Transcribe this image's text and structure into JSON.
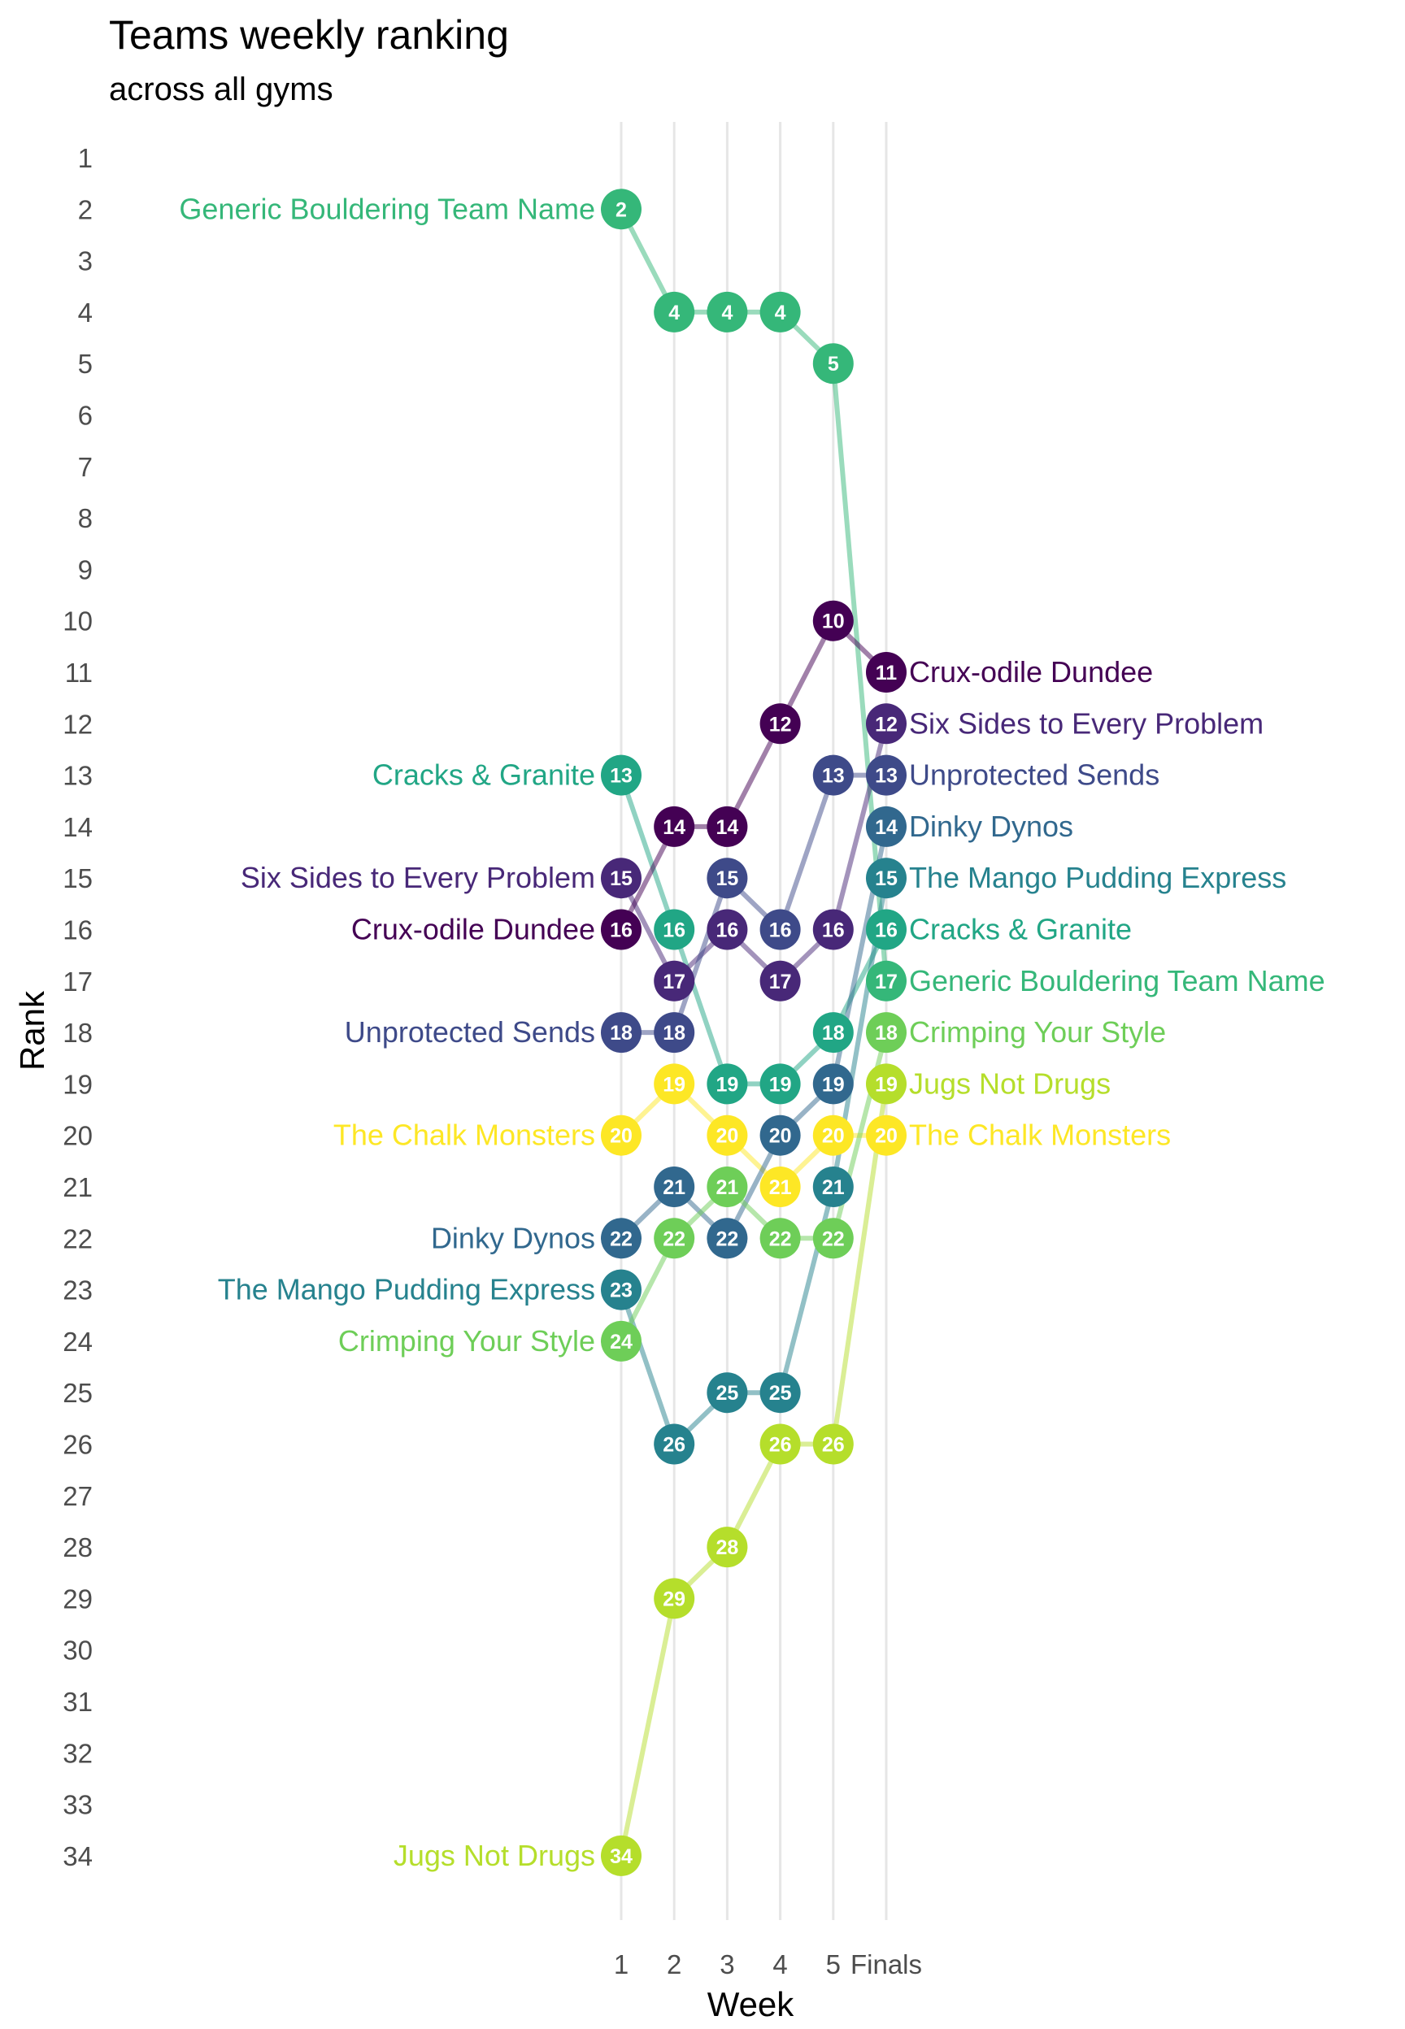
{
  "chart_data": {
    "type": "line",
    "title": "Teams weekly ranking",
    "subtitle": "across all gyms",
    "xlabel": "Week",
    "ylabel": "Rank",
    "categories": [
      "1",
      "2",
      "3",
      "4",
      "5",
      "Finals"
    ],
    "y_ticks": [
      1,
      2,
      3,
      4,
      5,
      6,
      7,
      8,
      9,
      10,
      11,
      12,
      13,
      14,
      15,
      16,
      17,
      18,
      19,
      20,
      21,
      22,
      23,
      24,
      25,
      26,
      27,
      28,
      29,
      30,
      31,
      32,
      33,
      34
    ],
    "ylim": [
      1,
      34
    ],
    "y_reversed": true,
    "grid": "vertical",
    "series": [
      {
        "name": "Generic Bouldering Team Name",
        "color": "#35b779",
        "values": [
          2,
          4,
          4,
          4,
          5,
          17
        ]
      },
      {
        "name": "Cracks & Granite",
        "color": "#21a685",
        "values": [
          13,
          16,
          19,
          19,
          18,
          16
        ]
      },
      {
        "name": "Six Sides to Every Problem",
        "color": "#482878",
        "values": [
          15,
          17,
          16,
          17,
          16,
          12
        ]
      },
      {
        "name": "Crux-odile Dundee",
        "color": "#440154",
        "values": [
          16,
          14,
          14,
          12,
          10,
          11
        ]
      },
      {
        "name": "Unprotected Sends",
        "color": "#3e4a89",
        "values": [
          18,
          18,
          15,
          16,
          13,
          13
        ]
      },
      {
        "name": "The Chalk Monsters",
        "color": "#fde725",
        "values": [
          20,
          19,
          20,
          21,
          20,
          20
        ]
      },
      {
        "name": "Dinky Dynos",
        "color": "#31688e",
        "values": [
          22,
          21,
          22,
          20,
          19,
          14
        ]
      },
      {
        "name": "The Mango Pudding Express",
        "color": "#26828e",
        "values": [
          23,
          26,
          25,
          25,
          21,
          15
        ]
      },
      {
        "name": "Crimping Your Style",
        "color": "#6ece58",
        "values": [
          24,
          22,
          21,
          22,
          22,
          18
        ]
      },
      {
        "name": "Jugs Not Drugs",
        "color": "#b5de2b",
        "values": [
          34,
          29,
          28,
          26,
          26,
          19
        ]
      }
    ]
  }
}
